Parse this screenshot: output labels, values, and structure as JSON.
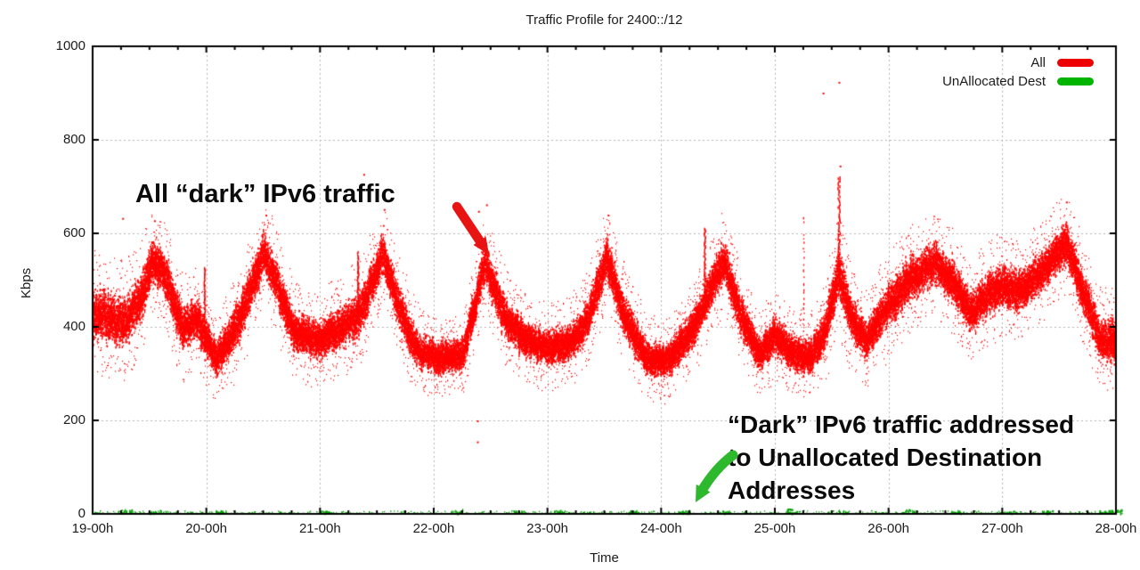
{
  "page": {
    "background": "#ffffff"
  },
  "chart_data": {
    "type": "scatter",
    "title": "Traffic Profile for 2400::/12",
    "xlabel": "Time",
    "ylabel": "Kbps",
    "x_tick_labels": [
      "19-00h",
      "20-00h",
      "21-00h",
      "22-00h",
      "23-00h",
      "24-00h",
      "25-00h",
      "26-00h",
      "27-00h",
      "28-00h"
    ],
    "x_range_hours": [
      19,
      28
    ],
    "x_minor_ticks_per_hour": 4,
    "y_ticks": [
      0,
      200,
      400,
      600,
      800,
      1000
    ],
    "ylim": [
      0,
      1000
    ],
    "grid": true,
    "grid_color": "#b3b3b3",
    "axis_color": "#000000",
    "legend": {
      "position": "top-right",
      "entries": [
        {
          "label": "All",
          "color": "#ee0000"
        },
        {
          "label": "UnAllocated Dest",
          "color": "#00b400"
        }
      ]
    },
    "series": [
      {
        "name": "All",
        "color": "#ff0000",
        "style": "dots",
        "unit": "Kbps",
        "band_keypoints": [
          [
            19.0,
            430,
            58
          ],
          [
            19.28,
            412,
            55
          ],
          [
            19.44,
            470,
            55
          ],
          [
            19.53,
            548,
            46
          ],
          [
            19.63,
            515,
            50
          ],
          [
            19.79,
            398,
            48
          ],
          [
            19.91,
            418,
            46
          ],
          [
            20.1,
            332,
            42
          ],
          [
            20.3,
            425,
            50
          ],
          [
            20.51,
            558,
            46
          ],
          [
            20.65,
            478,
            50
          ],
          [
            20.77,
            392,
            46
          ],
          [
            20.97,
            372,
            42
          ],
          [
            21.16,
            396,
            46
          ],
          [
            21.36,
            432,
            50
          ],
          [
            21.55,
            560,
            46
          ],
          [
            21.71,
            432,
            46
          ],
          [
            21.87,
            347,
            40
          ],
          [
            22.06,
            336,
            36
          ],
          [
            22.26,
            346,
            38
          ],
          [
            22.45,
            540,
            46
          ],
          [
            22.61,
            430,
            46
          ],
          [
            22.81,
            372,
            40
          ],
          [
            23.0,
            357,
            40
          ],
          [
            23.2,
            366,
            40
          ],
          [
            23.36,
            420,
            44
          ],
          [
            23.52,
            553,
            46
          ],
          [
            23.67,
            430,
            46
          ],
          [
            23.87,
            332,
            40
          ],
          [
            24.06,
            330,
            38
          ],
          [
            24.26,
            390,
            42
          ],
          [
            24.41,
            470,
            46
          ],
          [
            24.55,
            545,
            46
          ],
          [
            24.69,
            432,
            46
          ],
          [
            24.86,
            342,
            40
          ],
          [
            25.0,
            380,
            42
          ],
          [
            25.16,
            347,
            40
          ],
          [
            25.31,
            332,
            40
          ],
          [
            25.45,
            400,
            46
          ],
          [
            25.56,
            520,
            60
          ],
          [
            25.67,
            420,
            48
          ],
          [
            25.81,
            372,
            42
          ],
          [
            26.0,
            450,
            50
          ],
          [
            26.2,
            508,
            50
          ],
          [
            26.4,
            540,
            46
          ],
          [
            26.57,
            500,
            48
          ],
          [
            26.72,
            432,
            46
          ],
          [
            26.88,
            474,
            48
          ],
          [
            27.0,
            490,
            48
          ],
          [
            27.16,
            478,
            46
          ],
          [
            27.35,
            520,
            46
          ],
          [
            27.56,
            583,
            46
          ],
          [
            27.71,
            478,
            48
          ],
          [
            27.87,
            372,
            46
          ],
          [
            28.0,
            370,
            50
          ]
        ],
        "spikes": [
          [
            19.98,
            528,
            1.5
          ],
          [
            21.33,
            562,
            1.5
          ],
          [
            24.38,
            612,
            1.5
          ],
          [
            25.25,
            648,
            0
          ],
          [
            25.56,
            722,
            2.5
          ]
        ],
        "outliers": [
          [
            19.26,
            633
          ],
          [
            19.54,
            628
          ],
          [
            20.52,
            640
          ],
          [
            21.38,
            727
          ],
          [
            21.56,
            652
          ],
          [
            22.39,
            648
          ],
          [
            22.46,
            662
          ],
          [
            23.53,
            640
          ],
          [
            25.42,
            901
          ],
          [
            25.56,
            924
          ],
          [
            25.57,
            745
          ],
          [
            27.56,
            668
          ],
          [
            22.38,
            200
          ],
          [
            22.38,
            155
          ]
        ]
      },
      {
        "name": "UnAllocated Dest",
        "color": "#00a000",
        "style": "dots",
        "unit": "Kbps",
        "range_kbps": [
          0,
          6
        ],
        "clusters": [
          [
            19.3,
            8
          ],
          [
            19.55,
            6
          ],
          [
            20.12,
            6
          ],
          [
            21.05,
            5
          ],
          [
            22.2,
            9
          ],
          [
            22.75,
            6
          ],
          [
            23.1,
            7
          ],
          [
            23.75,
            6
          ],
          [
            24.2,
            8
          ],
          [
            24.55,
            5
          ],
          [
            25.15,
            10
          ],
          [
            25.6,
            7
          ],
          [
            26.2,
            8
          ],
          [
            26.6,
            6
          ],
          [
            27.05,
            6
          ],
          [
            27.4,
            7
          ],
          [
            27.9,
            6
          ],
          [
            28.0,
            8
          ]
        ]
      }
    ],
    "annotations": [
      {
        "id": "all-dark-traffic",
        "text": "All “dark” IPv6 traffic",
        "arrow_color": "#e81414",
        "points_to": "red traffic band peak near 22-30h"
      },
      {
        "id": "unallocated-dest-traffic",
        "text": "“Dark” IPv6 traffic addressed\nto Unallocated Destination\nAddresses",
        "arrow_color": "#2eb82e",
        "points_to": "green near-zero series near 24-30h"
      }
    ]
  }
}
